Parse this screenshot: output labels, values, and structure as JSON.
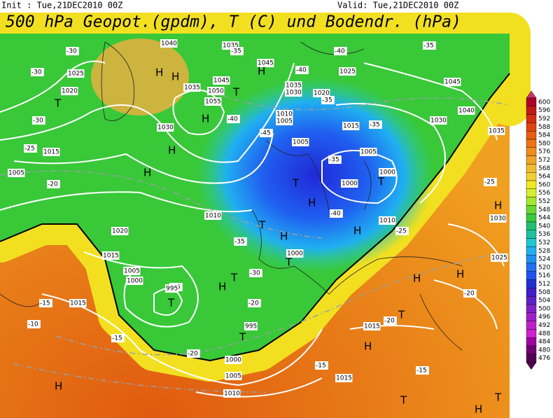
{
  "header": {
    "init": "Init : Tue,21DEC2010 00Z",
    "valid": "Valid: Tue,21DEC2010 00Z",
    "title": "500 hPa Geopot.(gpdm), T (C) und Bodendr. (hPa)"
  },
  "colorbar": {
    "labels": [
      "600",
      "596",
      "592",
      "588",
      "584",
      "580",
      "576",
      "572",
      "568",
      "564",
      "560",
      "556",
      "552",
      "548",
      "544",
      "540",
      "536",
      "532",
      "528",
      "524",
      "520",
      "516",
      "512",
      "508",
      "504",
      "500",
      "496",
      "492",
      "488",
      "484",
      "480",
      "476"
    ],
    "colors": [
      "#b0002a",
      "#c41818",
      "#d42c10",
      "#e04410",
      "#e85c10",
      "#ee7414",
      "#f08c1c",
      "#f0a428",
      "#f0bc30",
      "#f4d034",
      "#f2e820",
      "#d4f030",
      "#a4e830",
      "#68d830",
      "#38c840",
      "#20c070",
      "#20c0a0",
      "#20c8d0",
      "#20b0f0",
      "#2090f0",
      "#2070f0",
      "#2050f0",
      "#2030d0",
      "#4020c8",
      "#6020c8",
      "#8020c8",
      "#a020c8",
      "#c020c8",
      "#d020d0",
      "#a000a0",
      "#700070",
      "#500050"
    ]
  },
  "map_labels": [
    "-30",
    "-30",
    "1025",
    "1020",
    "T",
    "-30",
    "-25",
    "1015",
    "1005",
    "-20",
    "H",
    "H",
    "1040",
    "H",
    "H",
    "1035",
    "1045",
    "1050",
    "1055",
    "H",
    "T",
    "1030",
    "-40",
    "1035",
    "-35",
    "1045",
    "H",
    "-40",
    "1035",
    "1030",
    "1020",
    "-35",
    "1010",
    "1005",
    "-45",
    "1015",
    "-35",
    "-40",
    "1025",
    "1045",
    "-35",
    "1040",
    "1030",
    "1035",
    "1005",
    "1005",
    "1000",
    "T",
    "1000",
    "-35",
    "H",
    "T",
    "T",
    "H",
    "H",
    "1010",
    "-25",
    "-40",
    "-35",
    "1000",
    "T",
    "-30",
    "T",
    "H",
    "-25",
    "1010",
    "1020",
    "1015",
    "1005",
    "1000",
    "995",
    "T",
    "-15",
    "1015",
    "-10",
    "-15",
    "-20",
    "1000",
    "1005",
    "1010",
    "H",
    "-20",
    "995",
    "T",
    "-20",
    "1015",
    "H",
    "T",
    "H",
    "H",
    "-20",
    "1025",
    "1030",
    "H",
    "-25",
    "-15",
    "1015",
    "-15",
    "T",
    "H",
    "T"
  ]
}
